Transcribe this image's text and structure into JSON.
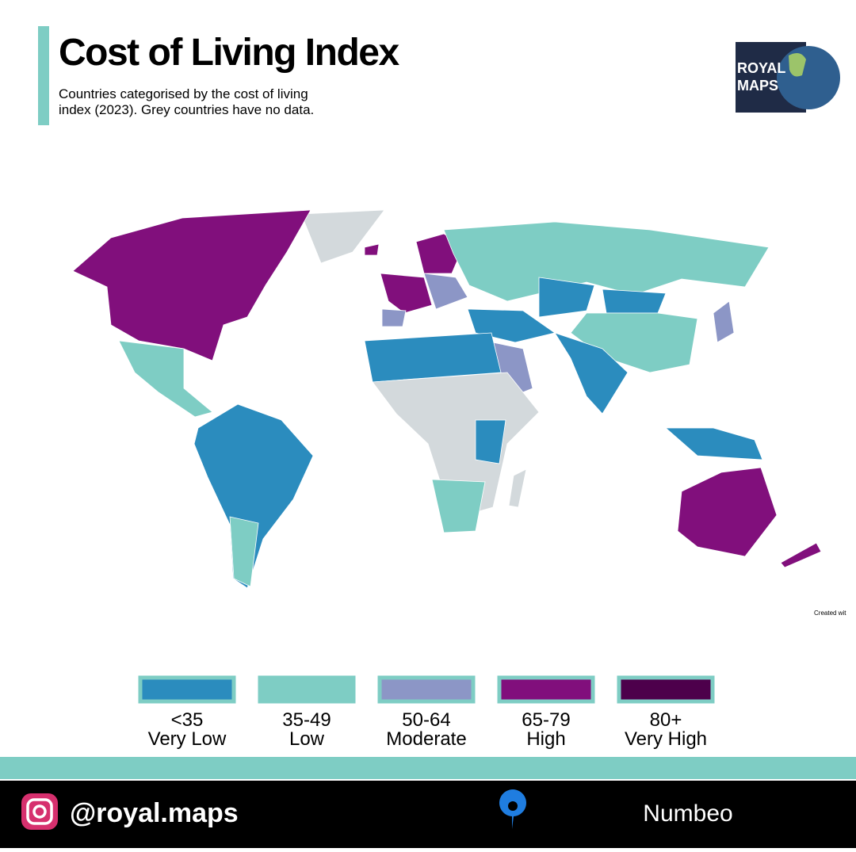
{
  "header": {
    "title": "Cost of Living Index",
    "subtitle_lines": [
      "Countries categorised by the cost of living",
      "index (2023). Grey countries have no data."
    ]
  },
  "logo": {
    "lines": [
      "ROYAL",
      "MAPS"
    ]
  },
  "map": {
    "credit": "Created wit",
    "no_data_color": "#d3d9dc"
  },
  "legend": {
    "items": [
      {
        "range": "<35",
        "label": "Very Low",
        "color": "#2b8cbe"
      },
      {
        "range": "35-49",
        "label": "Low",
        "color": "#7ecdc4"
      },
      {
        "range": "50-64",
        "label": "Moderate",
        "color": "#8c96c6"
      },
      {
        "range": "65-79",
        "label": "High",
        "color": "#810f7c"
      },
      {
        "range": "80+",
        "label": "Very High",
        "color": "#4d004b"
      }
    ]
  },
  "footer": {
    "handle": "@royal.maps",
    "source": "Numbeo"
  }
}
